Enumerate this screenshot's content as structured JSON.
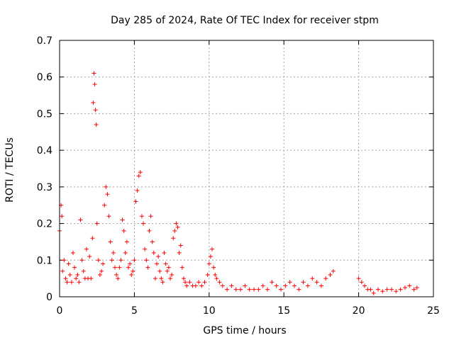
{
  "chart_data": {
    "type": "scatter",
    "title": "Day 285 of 2024, Rate Of TEC Index for receiver stpm",
    "xlabel": "GPS time / hours",
    "ylabel": "ROTI / TECUs",
    "xlim": [
      0,
      25
    ],
    "ylim": [
      0,
      0.7
    ],
    "xticks": [
      0,
      5,
      10,
      15,
      20,
      25
    ],
    "yticks": [
      0,
      0.1,
      0.2,
      0.3,
      0.4,
      0.5,
      0.6,
      0.7
    ],
    "xtick_labels": [
      "0",
      "5",
      "10",
      "15",
      "20",
      "25"
    ],
    "ytick_labels": [
      "0",
      "0.1",
      "0.2",
      "0.3",
      "0.4",
      "0.5",
      "0.6",
      "0.7"
    ],
    "grid": true,
    "marker": "+",
    "color": "#ff0000",
    "series": [
      {
        "name": "ROTI",
        "x": [
          0.0,
          0.1,
          0.15,
          0.2,
          0.3,
          0.4,
          0.5,
          0.6,
          0.7,
          0.8,
          0.9,
          1.0,
          1.1,
          1.2,
          1.3,
          1.4,
          1.5,
          1.6,
          1.7,
          1.8,
          1.9,
          2.0,
          2.1,
          2.2,
          2.25,
          2.3,
          2.35,
          2.4,
          2.45,
          2.5,
          2.6,
          2.7,
          2.8,
          2.9,
          3.0,
          3.1,
          3.2,
          3.3,
          3.4,
          3.5,
          3.6,
          3.7,
          3.8,
          3.9,
          4.0,
          4.1,
          4.2,
          4.3,
          4.4,
          4.5,
          4.6,
          4.7,
          4.8,
          4.9,
          5.0,
          5.1,
          5.2,
          5.3,
          5.4,
          5.5,
          5.6,
          5.7,
          5.8,
          5.9,
          6.0,
          6.1,
          6.2,
          6.3,
          6.4,
          6.5,
          6.6,
          6.7,
          6.8,
          6.9,
          7.0,
          7.1,
          7.2,
          7.3,
          7.4,
          7.5,
          7.6,
          7.7,
          7.8,
          7.9,
          8.0,
          8.1,
          8.2,
          8.3,
          8.4,
          8.5,
          8.7,
          8.9,
          9.1,
          9.3,
          9.5,
          9.7,
          9.9,
          10.0,
          10.1,
          10.2,
          10.3,
          10.4,
          10.5,
          10.7,
          10.9,
          11.2,
          11.5,
          11.8,
          12.1,
          12.4,
          12.7,
          13.0,
          13.3,
          13.6,
          13.9,
          14.2,
          14.5,
          14.8,
          15.1,
          15.4,
          15.7,
          16.0,
          16.3,
          16.6,
          16.9,
          17.2,
          17.5,
          17.8,
          18.1,
          18.3,
          20.0,
          20.2,
          20.4,
          20.6,
          20.8,
          21.0,
          21.3,
          21.6,
          21.9,
          22.2,
          22.5,
          22.8,
          23.1,
          23.4,
          23.7,
          23.9
        ],
        "y": [
          0.18,
          0.25,
          0.22,
          0.07,
          0.1,
          0.05,
          0.04,
          0.09,
          0.06,
          0.04,
          0.12,
          0.08,
          0.05,
          0.06,
          0.04,
          0.21,
          0.1,
          0.07,
          0.05,
          0.13,
          0.05,
          0.11,
          0.05,
          0.16,
          0.53,
          0.61,
          0.58,
          0.51,
          0.47,
          0.2,
          0.1,
          0.06,
          0.07,
          0.09,
          0.25,
          0.3,
          0.28,
          0.22,
          0.15,
          0.1,
          0.12,
          0.08,
          0.06,
          0.05,
          0.08,
          0.1,
          0.21,
          0.18,
          0.12,
          0.15,
          0.08,
          0.09,
          0.06,
          0.07,
          0.1,
          0.26,
          0.29,
          0.33,
          0.34,
          0.22,
          0.2,
          0.13,
          0.1,
          0.08,
          0.18,
          0.22,
          0.15,
          0.12,
          0.05,
          0.09,
          0.11,
          0.07,
          0.05,
          0.04,
          0.12,
          0.09,
          0.07,
          0.08,
          0.05,
          0.06,
          0.16,
          0.18,
          0.2,
          0.19,
          0.12,
          0.14,
          0.08,
          0.05,
          0.04,
          0.03,
          0.04,
          0.03,
          0.03,
          0.04,
          0.03,
          0.04,
          0.06,
          0.09,
          0.11,
          0.13,
          0.08,
          0.06,
          0.05,
          0.04,
          0.03,
          0.02,
          0.03,
          0.02,
          0.02,
          0.03,
          0.02,
          0.02,
          0.02,
          0.03,
          0.02,
          0.04,
          0.03,
          0.02,
          0.03,
          0.04,
          0.03,
          0.02,
          0.04,
          0.03,
          0.05,
          0.04,
          0.03,
          0.05,
          0.06,
          0.07,
          0.05,
          0.04,
          0.03,
          0.02,
          0.02,
          0.01,
          0.02,
          0.015,
          0.02,
          0.02,
          0.015,
          0.02,
          0.025,
          0.03,
          0.02,
          0.025
        ]
      }
    ]
  }
}
